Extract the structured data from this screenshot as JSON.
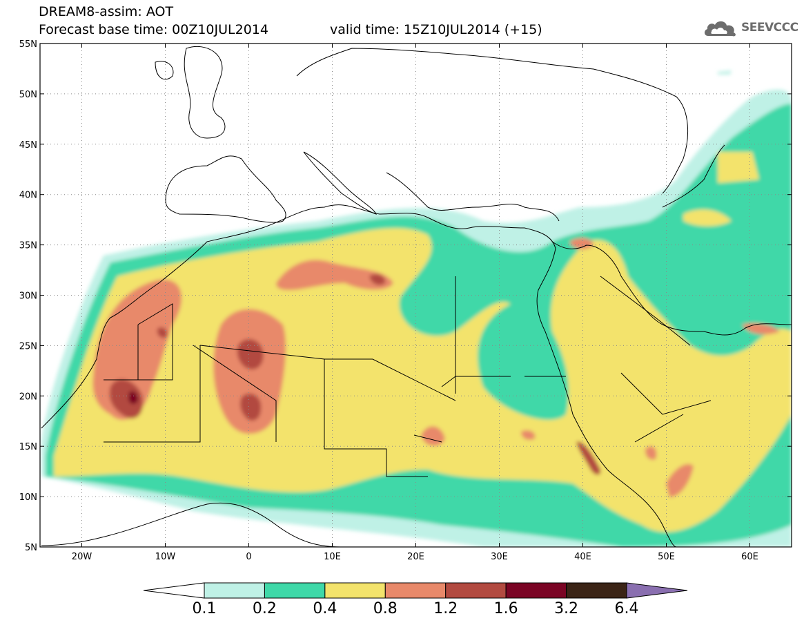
{
  "title": {
    "line1": "DREAM8-assim: AOT",
    "base_time": "Forecast base time: 00Z10JUL2014",
    "valid_time": "valid time: 15Z10JUL2014 (+15)"
  },
  "logo": {
    "text": "SEEVCCC",
    "icon": "cloud-icon"
  },
  "map": {
    "variable": "AOT",
    "lon_range": [
      -25,
      65
    ],
    "lat_range": [
      5,
      55
    ],
    "lat_ticks": [
      {
        "value": 55,
        "label": "55N"
      },
      {
        "value": 50,
        "label": "50N"
      },
      {
        "value": 45,
        "label": "45N"
      },
      {
        "value": 40,
        "label": "40N"
      },
      {
        "value": 35,
        "label": "35N"
      },
      {
        "value": 30,
        "label": "30N"
      },
      {
        "value": 25,
        "label": "25N"
      },
      {
        "value": 20,
        "label": "20N"
      },
      {
        "value": 15,
        "label": "15N"
      },
      {
        "value": 10,
        "label": "10N"
      },
      {
        "value": 5,
        "label": "5N"
      }
    ],
    "lon_ticks": [
      {
        "value": -20,
        "label": "20W"
      },
      {
        "value": -10,
        "label": "10W"
      },
      {
        "value": 0,
        "label": "0"
      },
      {
        "value": 10,
        "label": "10E"
      },
      {
        "value": 20,
        "label": "20E"
      },
      {
        "value": 30,
        "label": "30E"
      },
      {
        "value": 40,
        "label": "40E"
      },
      {
        "value": 50,
        "label": "50E"
      },
      {
        "value": 60,
        "label": "60E"
      }
    ],
    "grid_lines": "dotted"
  },
  "colorbar": {
    "levels": [
      "0.1",
      "0.2",
      "0.4",
      "0.8",
      "1.2",
      "1.6",
      "3.2",
      "6.4"
    ],
    "colors": [
      "#ffffff",
      "#bff1e6",
      "#3fd8a8",
      "#f3e36c",
      "#e8896a",
      "#b24a40",
      "#7a0424",
      "#3b2416",
      "#8a6fb0"
    ]
  }
}
